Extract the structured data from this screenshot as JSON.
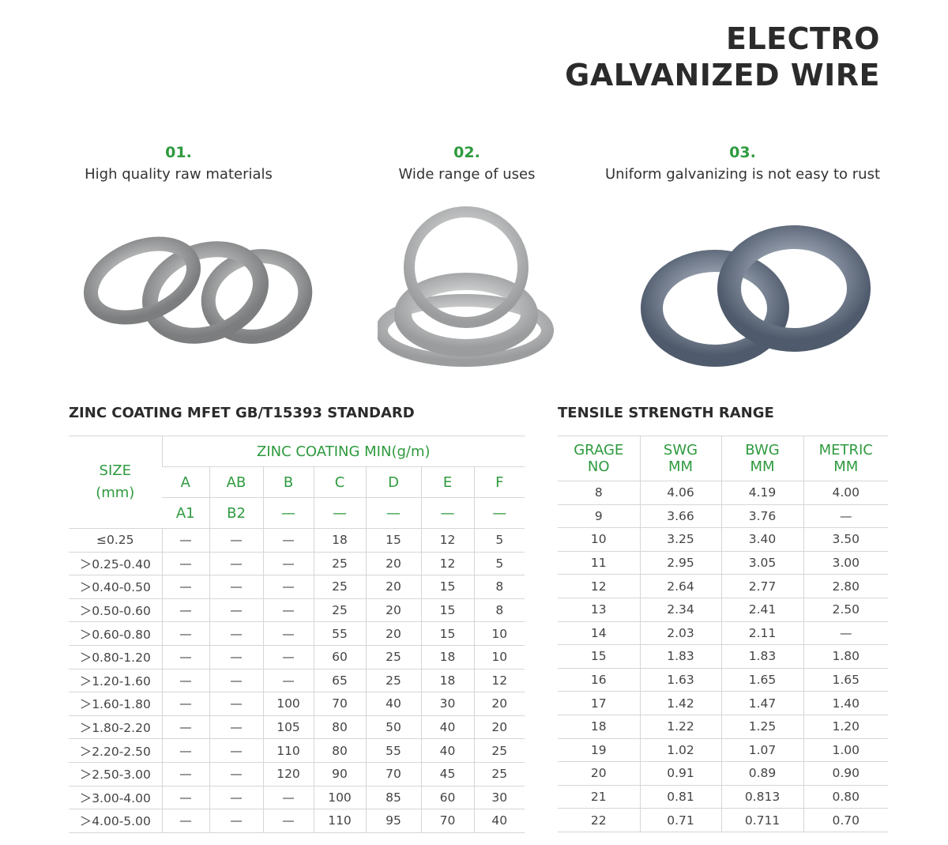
{
  "header": {
    "title_line1": "ELECTRO",
    "title_line2": "GALVANIZED WIRE"
  },
  "features": [
    {
      "num": "01.",
      "text": "High quality raw materials",
      "image": "wire-coils-three"
    },
    {
      "num": "02.",
      "text": "Wide range of uses",
      "image": "wire-coils-stacked"
    },
    {
      "num": "03.",
      "text": "Uniform galvanizing is not easy to rust",
      "image": "wire-coils-blue"
    }
  ],
  "zinc": {
    "title": "ZINC COATING MFET GB/T15393 STANDARD",
    "size_header": "SIZE\n(mm)",
    "group_header": "ZINC COATING MIN(g/m)",
    "classes": [
      "A",
      "AB",
      "B",
      "C",
      "D",
      "E",
      "F"
    ],
    "subclasses": [
      "A1",
      "B2",
      "—",
      "—",
      "—",
      "—",
      "—"
    ],
    "rows": [
      [
        "≤0.25",
        "—",
        "—",
        "—",
        "18",
        "15",
        "12",
        "5"
      ],
      [
        "＞0.25-0.40",
        "—",
        "—",
        "—",
        "25",
        "20",
        "12",
        "5"
      ],
      [
        "＞0.40-0.50",
        "—",
        "—",
        "—",
        "25",
        "20",
        "15",
        "8"
      ],
      [
        "＞0.50-0.60",
        "—",
        "—",
        "—",
        "25",
        "20",
        "15",
        "8"
      ],
      [
        "＞0.60-0.80",
        "—",
        "—",
        "—",
        "55",
        "20",
        "15",
        "10"
      ],
      [
        "＞0.80-1.20",
        "—",
        "—",
        "—",
        "60",
        "25",
        "18",
        "10"
      ],
      [
        "＞1.20-1.60",
        "—",
        "—",
        "—",
        "65",
        "25",
        "18",
        "12"
      ],
      [
        "＞1.60-1.80",
        "—",
        "—",
        "100",
        "70",
        "40",
        "30",
        "20"
      ],
      [
        "＞1.80-2.20",
        "—",
        "—",
        "105",
        "80",
        "50",
        "40",
        "20"
      ],
      [
        "＞2.20-2.50",
        "—",
        "—",
        "110",
        "80",
        "55",
        "40",
        "25"
      ],
      [
        "＞2.50-3.00",
        "—",
        "—",
        "120",
        "90",
        "70",
        "45",
        "25"
      ],
      [
        "＞3.00-4.00",
        "—",
        "—",
        "—",
        "100",
        "85",
        "60",
        "30"
      ],
      [
        "＞4.00-5.00",
        "—",
        "—",
        "—",
        "110",
        "95",
        "70",
        "40"
      ]
    ]
  },
  "tensile": {
    "title": "TENSILE STRENGTH RANGE",
    "headers": [
      "GRAGE\nNO",
      "SWG\nMM",
      "BWG\nMM",
      "METRIC\nMM"
    ],
    "rows": [
      [
        "8",
        "4.06",
        "4.19",
        "4.00"
      ],
      [
        "9",
        "3.66",
        "3.76",
        "—"
      ],
      [
        "10",
        "3.25",
        "3.40",
        "3.50"
      ],
      [
        "11",
        "2.95",
        "3.05",
        "3.00"
      ],
      [
        "12",
        "2.64",
        "2.77",
        "2.80"
      ],
      [
        "13",
        "2.34",
        "2.41",
        "2.50"
      ],
      [
        "14",
        "2.03",
        "2.11",
        "—"
      ],
      [
        "15",
        "1.83",
        "1.83",
        "1.80"
      ],
      [
        "16",
        "1.63",
        "1.65",
        "1.65"
      ],
      [
        "17",
        "1.42",
        "1.47",
        "1.40"
      ],
      [
        "18",
        "1.22",
        "1.25",
        "1.20"
      ],
      [
        "19",
        "1.02",
        "1.07",
        "1.00"
      ],
      [
        "20",
        "0.91",
        "0.89",
        "0.90"
      ],
      [
        "21",
        "0.81",
        "0.813",
        "0.80"
      ],
      [
        "22",
        "0.71",
        "0.711",
        "0.70"
      ]
    ]
  },
  "colors": {
    "accent": "#2e9a3e",
    "text": "#333333",
    "rule": "#d6d6d6"
  }
}
